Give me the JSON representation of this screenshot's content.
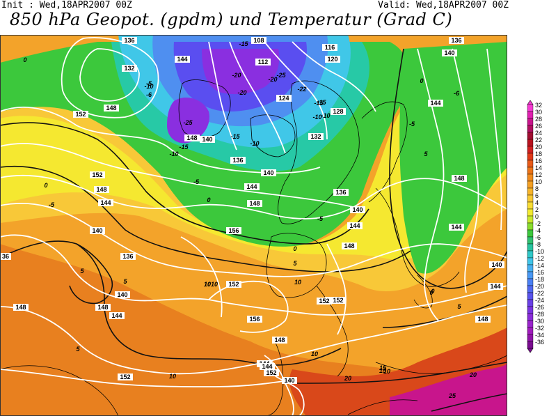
{
  "header": {
    "init": "Init : Wed,18APR2007 00Z",
    "valid": "Valid: Wed,18APR2007 00Z",
    "title": "850 hPa Geopot. (gpdm) und Temperatur (Grad C)"
  },
  "colors": {
    "magenta": "#c8158c",
    "red": "#d9481a",
    "orange_dark": "#e8801f",
    "orange": "#f3a32a",
    "yellow_orange": "#f8c838",
    "yellow": "#f5e830",
    "yellow_green": "#b9e22c",
    "green": "#3cc83c",
    "teal": "#27c9a6",
    "cyan": "#40c7e8",
    "blue": "#4f8ff0",
    "indigo": "#5a4ef0",
    "purple": "#8a2fe0"
  },
  "legend": {
    "ticks": [
      "32",
      "30",
      "28",
      "26",
      "24",
      "22",
      "20",
      "18",
      "16",
      "14",
      "12",
      "10",
      "8",
      "6",
      "4",
      "2",
      "0",
      "-2",
      "-4",
      "-6",
      "-8",
      "-10",
      "-12",
      "-14",
      "-16",
      "-18",
      "-20",
      "-22",
      "-24",
      "-26",
      "-28",
      "-30",
      "-32",
      "-34",
      "-36"
    ],
    "colors": [
      "#f53cd2",
      "#e020b0",
      "#c8158c",
      "#b01060",
      "#a00c30",
      "#b8121e",
      "#d02020",
      "#e03818",
      "#e85a18",
      "#ec7418",
      "#f08a1c",
      "#f4a024",
      "#f6b42a",
      "#f8c832",
      "#f8dc34",
      "#f2ea30",
      "#c8e82c",
      "#88dc2c",
      "#3cc83c",
      "#30c070",
      "#28c4a0",
      "#30c8c8",
      "#40c4e8",
      "#48b0f0",
      "#4898f4",
      "#4a80f4",
      "#5068f0",
      "#5852ec",
      "#6a40e6",
      "#7a34e0",
      "#8a2cd8",
      "#9a24cc",
      "#a01cbc",
      "#9014a8",
      "#7a0c90"
    ]
  },
  "geopotential_labels": [
    "136",
    "140",
    "144",
    "148",
    "152",
    "156",
    "128",
    "132",
    "120",
    "124",
    "116",
    "112",
    "108"
  ],
  "temperature_labels": [
    "0",
    "-5",
    "-6",
    "-10",
    "-15",
    "-20",
    "-25",
    "5",
    "10",
    "15",
    "20",
    "25"
  ],
  "map_labels": [
    {
      "t": "136",
      "k": "g"
    },
    {
      "t": "132",
      "k": "g"
    },
    {
      "t": "-5",
      "k": "t"
    },
    {
      "t": "-6",
      "k": "t"
    },
    {
      "t": "-10",
      "k": "t"
    },
    {
      "t": "148",
      "k": "g"
    },
    {
      "t": "152",
      "k": "g"
    },
    {
      "t": "0",
      "k": "t"
    },
    {
      "t": "152",
      "k": "g"
    },
    {
      "t": "148",
      "k": "g"
    },
    {
      "t": "144",
      "k": "g"
    },
    {
      "t": "0",
      "k": "t"
    },
    {
      "t": "-5",
      "k": "t"
    },
    {
      "t": "140",
      "k": "g"
    },
    {
      "t": "136",
      "k": "g"
    },
    {
      "t": "5",
      "k": "t"
    },
    {
      "t": "5",
      "k": "t"
    },
    {
      "t": "140",
      "k": "g"
    },
    {
      "t": "144",
      "k": "g"
    },
    {
      "t": "148",
      "k": "g"
    },
    {
      "t": "152",
      "k": "g"
    },
    {
      "t": "148",
      "k": "g"
    },
    {
      "t": "5",
      "k": "t"
    },
    {
      "t": "10",
      "k": "t"
    },
    {
      "t": "10",
      "k": "t"
    },
    {
      "t": "144",
      "k": "g"
    },
    {
      "t": "152",
      "k": "g"
    },
    {
      "t": "156",
      "k": "g"
    },
    {
      "t": "10",
      "k": "t"
    },
    {
      "t": "152",
      "k": "g"
    },
    {
      "t": "156",
      "k": "g"
    },
    {
      "t": "152",
      "k": "g"
    },
    {
      "t": "-15",
      "k": "t"
    },
    {
      "t": "148",
      "k": "g"
    },
    {
      "t": "140",
      "k": "g"
    },
    {
      "t": "-10",
      "k": "t"
    },
    {
      "t": "-25",
      "k": "t"
    },
    {
      "t": "144",
      "k": "g"
    },
    {
      "t": "-20",
      "k": "t"
    },
    {
      "t": "-20",
      "k": "t"
    },
    {
      "t": "-15",
      "k": "t"
    },
    {
      "t": "-15",
      "k": "t"
    },
    {
      "t": "-10",
      "k": "t"
    },
    {
      "t": "136",
      "k": "g"
    },
    {
      "t": "140",
      "k": "g"
    },
    {
      "t": "-5",
      "k": "t"
    },
    {
      "t": "144",
      "k": "g"
    },
    {
      "t": "148",
      "k": "g"
    },
    {
      "t": "0",
      "k": "t"
    },
    {
      "t": "108",
      "k": "g"
    },
    {
      "t": "-15",
      "k": "t"
    },
    {
      "t": "112",
      "k": "g"
    },
    {
      "t": "-20",
      "k": "t"
    },
    {
      "t": "-25",
      "k": "t"
    },
    {
      "t": "-22",
      "k": "t"
    },
    {
      "t": "124",
      "k": "g"
    },
    {
      "t": "-15",
      "k": "t"
    },
    {
      "t": "-10",
      "k": "t"
    },
    {
      "t": "-10",
      "k": "t"
    },
    {
      "t": "132",
      "k": "g"
    },
    {
      "t": "116",
      "k": "g"
    },
    {
      "t": "120",
      "k": "g"
    },
    {
      "t": "128",
      "k": "g"
    },
    {
      "t": "136",
      "k": "g"
    },
    {
      "t": "-5",
      "k": "t"
    },
    {
      "t": "140",
      "k": "g"
    },
    {
      "t": "144",
      "k": "g"
    },
    {
      "t": "148",
      "k": "g"
    },
    {
      "t": "0",
      "k": "t"
    },
    {
      "t": "5",
      "k": "t"
    },
    {
      "t": "10",
      "k": "t"
    },
    {
      "t": "152",
      "k": "g"
    },
    {
      "t": "10",
      "k": "t"
    },
    {
      "t": "148",
      "k": "g"
    },
    {
      "t": "144",
      "k": "g"
    },
    {
      "t": "10",
      "k": "t"
    },
    {
      "t": "140",
      "k": "g"
    },
    {
      "t": "15",
      "k": "t"
    },
    {
      "t": "10",
      "k": "t"
    },
    {
      "t": "20",
      "k": "t"
    },
    {
      "t": "15",
      "k": "t"
    },
    {
      "t": "20",
      "k": "t"
    },
    {
      "t": "25",
      "k": "t"
    },
    {
      "t": "136",
      "k": "g"
    },
    {
      "t": "140",
      "k": "g"
    },
    {
      "t": "0",
      "k": "t"
    },
    {
      "t": "-6",
      "k": "t"
    },
    {
      "t": "144",
      "k": "g"
    },
    {
      "t": "5",
      "k": "t"
    },
    {
      "t": "148",
      "k": "g"
    },
    {
      "t": "144",
      "k": "g"
    },
    {
      "t": "140",
      "k": "g"
    },
    {
      "t": "0",
      "k": "t"
    },
    {
      "t": "5",
      "k": "t"
    },
    {
      "t": "144",
      "k": "g"
    },
    {
      "t": "148",
      "k": "g"
    },
    {
      "t": "152",
      "k": "g"
    },
    {
      "t": "0",
      "k": "t"
    },
    {
      "t": "-5",
      "k": "t"
    },
    {
      "t": "36",
      "k": "g"
    },
    {
      "t": "152",
      "k": "g"
    },
    {
      "t": "156",
      "k": "g"
    }
  ]
}
